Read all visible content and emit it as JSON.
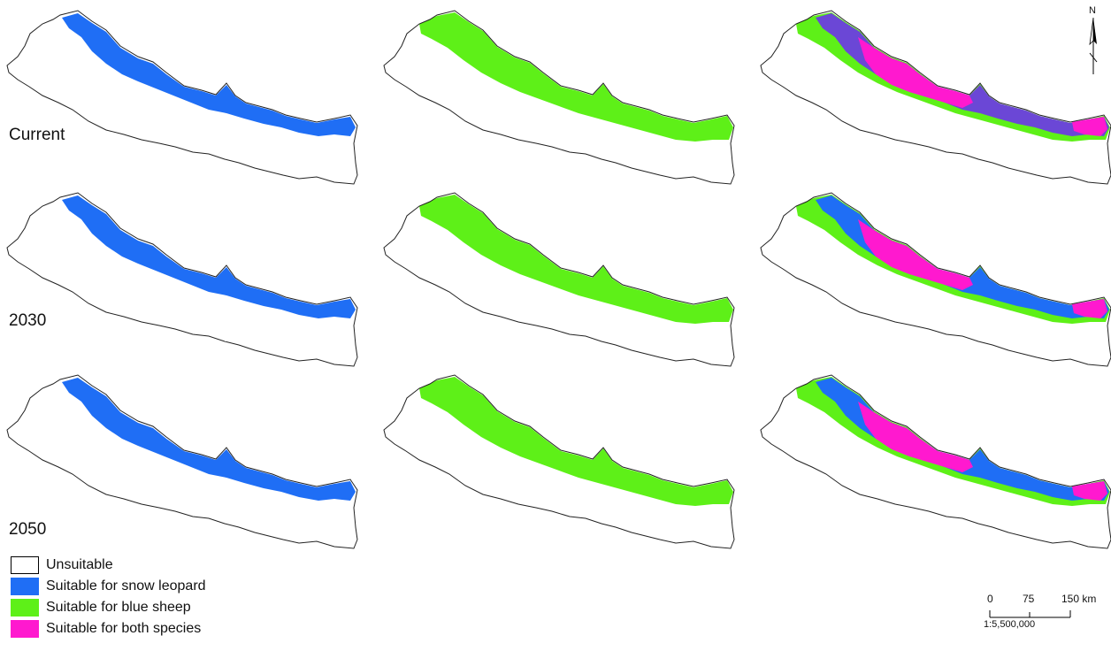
{
  "rows": [
    {
      "label": "Current"
    },
    {
      "label": "2030"
    },
    {
      "label": "2050"
    }
  ],
  "legend": [
    {
      "label": "Unsuitable",
      "color": "#ffffff",
      "border": "#000000"
    },
    {
      "label": "Suitable for snow leopard",
      "color": "#1f6ef5"
    },
    {
      "label": "Suitable for blue sheep",
      "color": "#5ef018"
    },
    {
      "label": "Suitable for both species",
      "color": "#ff19cf"
    }
  ],
  "scale_bar": {
    "ticks": [
      "0",
      "75",
      "150 km"
    ],
    "ratio": "1:5,500,000"
  },
  "north_arrow": {
    "label": "N",
    "icon": "north-arrow-icon"
  },
  "colors": {
    "outline": "#222222",
    "snow_leopard": "#1f6ef5",
    "blue_sheep": "#5ef018",
    "both": "#ff19cf",
    "overlap_edge": "#6b47d6"
  }
}
